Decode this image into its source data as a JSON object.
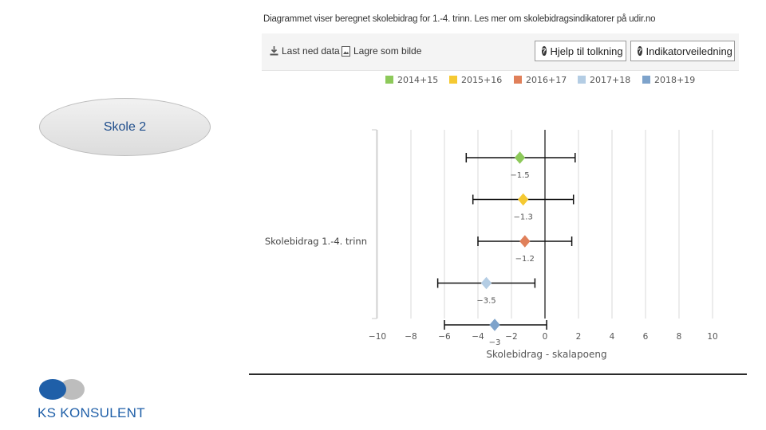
{
  "slide": {
    "school_label": "Skole 2",
    "logo_text": "KS KONSULENT",
    "colors": {
      "badge_text": "#1f4e8c",
      "logo_blue": "#1f5fa8",
      "logo_gray": "#bdbdbd"
    }
  },
  "caption": "Diagrammet viser beregnet skolebidrag for 1.-4. trinn. Les mer om skolebidragsindikatorer på udir.no",
  "toolbar": {
    "download_label": "Last ned data",
    "save_image_label": "Lagre som bilde",
    "help_label": "Hjelp til tolkning",
    "guide_label": "Indikatorveiledning"
  },
  "chart_data": {
    "type": "scatter",
    "subtype": "point-with-interval",
    "title": "",
    "category_label": "Skolebidrag 1.-4. trinn",
    "xlabel": "Skolebidrag - skalapoeng",
    "xlim": [
      -10,
      10
    ],
    "xticks": [
      -10,
      -8,
      -6,
      -4,
      -2,
      0,
      2,
      4,
      6,
      8,
      10
    ],
    "xtick_labels": [
      "−10",
      "−8",
      "−6",
      "−4",
      "−2",
      "0",
      "2",
      "4",
      "6",
      "8",
      "10"
    ],
    "grid": true,
    "legend_position": "top",
    "series": [
      {
        "name": "2014+15",
        "color": "#8dc95a",
        "value": -1.5,
        "label": "−1.5",
        "low": -4.7,
        "high": 1.8
      },
      {
        "name": "2015+16",
        "color": "#f5c932",
        "value": -1.3,
        "label": "−1.3",
        "low": -4.3,
        "high": 1.7
      },
      {
        "name": "2016+17",
        "color": "#e0805a",
        "value": -1.2,
        "label": "−1.2",
        "low": -4.0,
        "high": 1.6
      },
      {
        "name": "2017+18",
        "color": "#b4cde4",
        "value": -3.5,
        "label": "−3.5",
        "low": -6.4,
        "high": -0.6
      },
      {
        "name": "2018+19",
        "color": "#7ea3cb",
        "value": -3.0,
        "label": "−3",
        "low": -6.0,
        "high": 0.1
      }
    ]
  }
}
